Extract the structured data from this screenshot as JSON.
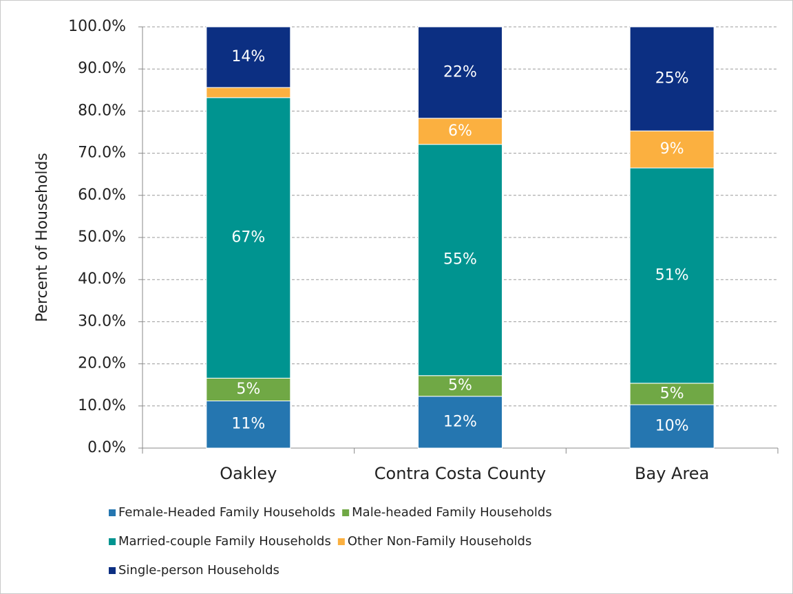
{
  "chart_data": {
    "type": "stacked_bar",
    "ylabel": "Percent of Households",
    "categories": [
      "Oakley",
      "Contra Costa County",
      "Bay Area"
    ],
    "series": [
      {
        "name": "Female-Headed Family Households",
        "color": "#2576b0",
        "values": [
          11.2,
          12.3,
          10.3
        ],
        "value_labels": [
          "11%",
          "12%",
          "10%"
        ]
      },
      {
        "name": "Male-headed Family Households",
        "color": "#70a845",
        "values": [
          5.4,
          4.9,
          5.1
        ],
        "value_labels": [
          "5%",
          "5%",
          "5%"
        ]
      },
      {
        "name": "Married-couple Family Households",
        "color": "#009490",
        "values": [
          66.6,
          54.9,
          51.1
        ],
        "value_labels": [
          "67%",
          "55%",
          "51%"
        ]
      },
      {
        "name": "Other Non-Family Households",
        "color": "#fbb040",
        "values": [
          2.4,
          6.2,
          8.8
        ],
        "value_labels": [
          null,
          "6%",
          "9%"
        ]
      },
      {
        "name": "Single-person Households",
        "color": "#0c2f82",
        "values": [
          14.4,
          21.7,
          24.7
        ],
        "value_labels": [
          "14%",
          "22%",
          "25%"
        ]
      }
    ],
    "ylim": [
      0,
      100
    ],
    "yticks": [
      {
        "value": 0,
        "label": "0.0%"
      },
      {
        "value": 10,
        "label": "10.0%"
      },
      {
        "value": 20,
        "label": "20.0%"
      },
      {
        "value": 30,
        "label": "30.0%"
      },
      {
        "value": 40,
        "label": "40.0%"
      },
      {
        "value": 50,
        "label": "50.0%"
      },
      {
        "value": 60,
        "label": "60.0%"
      },
      {
        "value": 70,
        "label": "70.0%"
      },
      {
        "value": 80,
        "label": "80.0%"
      },
      {
        "value": 90,
        "label": "90.0%"
      },
      {
        "value": 100,
        "label": "100.0%"
      }
    ],
    "grid": true,
    "legend": "bottom"
  }
}
